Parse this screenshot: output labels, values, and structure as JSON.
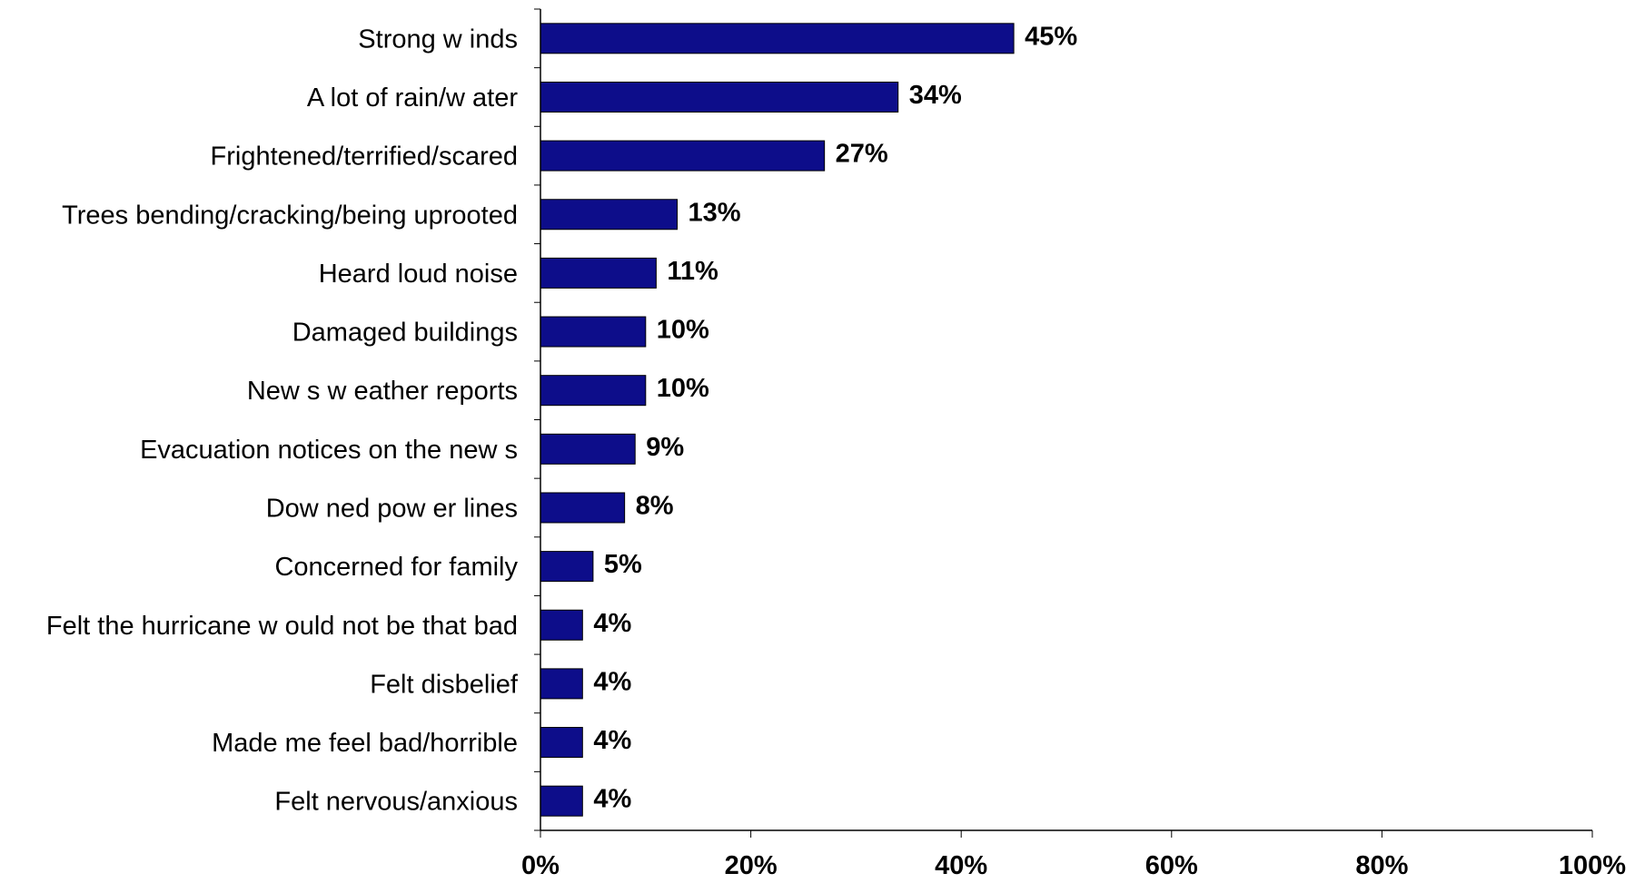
{
  "chart_data": {
    "type": "bar",
    "orientation": "horizontal",
    "categories": [
      "Strong w inds",
      "A lot of rain/w ater",
      "Frightened/terrified/scared",
      "Trees bending/cracking/being uprooted",
      "Heard loud noise",
      "Damaged buildings",
      "New s w eather reports",
      "Evacuation notices on the new s",
      "Dow ned pow er lines",
      "Concerned for family",
      "Felt the hurricane w ould not be that bad",
      "Felt disbelief",
      "Made me feel bad/horrible",
      "Felt nervous/anxious"
    ],
    "values": [
      45,
      34,
      27,
      13,
      11,
      10,
      10,
      9,
      8,
      5,
      4,
      4,
      4,
      4
    ],
    "value_labels": [
      "45%",
      "34%",
      "27%",
      "13%",
      "11%",
      "10%",
      "10%",
      "9%",
      "8%",
      "5%",
      "4%",
      "4%",
      "4%",
      "4%"
    ],
    "xlim": [
      0,
      100
    ],
    "xticks": [
      0,
      20,
      40,
      60,
      80,
      100
    ],
    "xtick_labels": [
      "0%",
      "20%",
      "40%",
      "60%",
      "80%",
      "100%"
    ],
    "title": "",
    "xlabel": "",
    "ylabel": "",
    "grid": false,
    "bar_color": "#0d0d8a"
  }
}
